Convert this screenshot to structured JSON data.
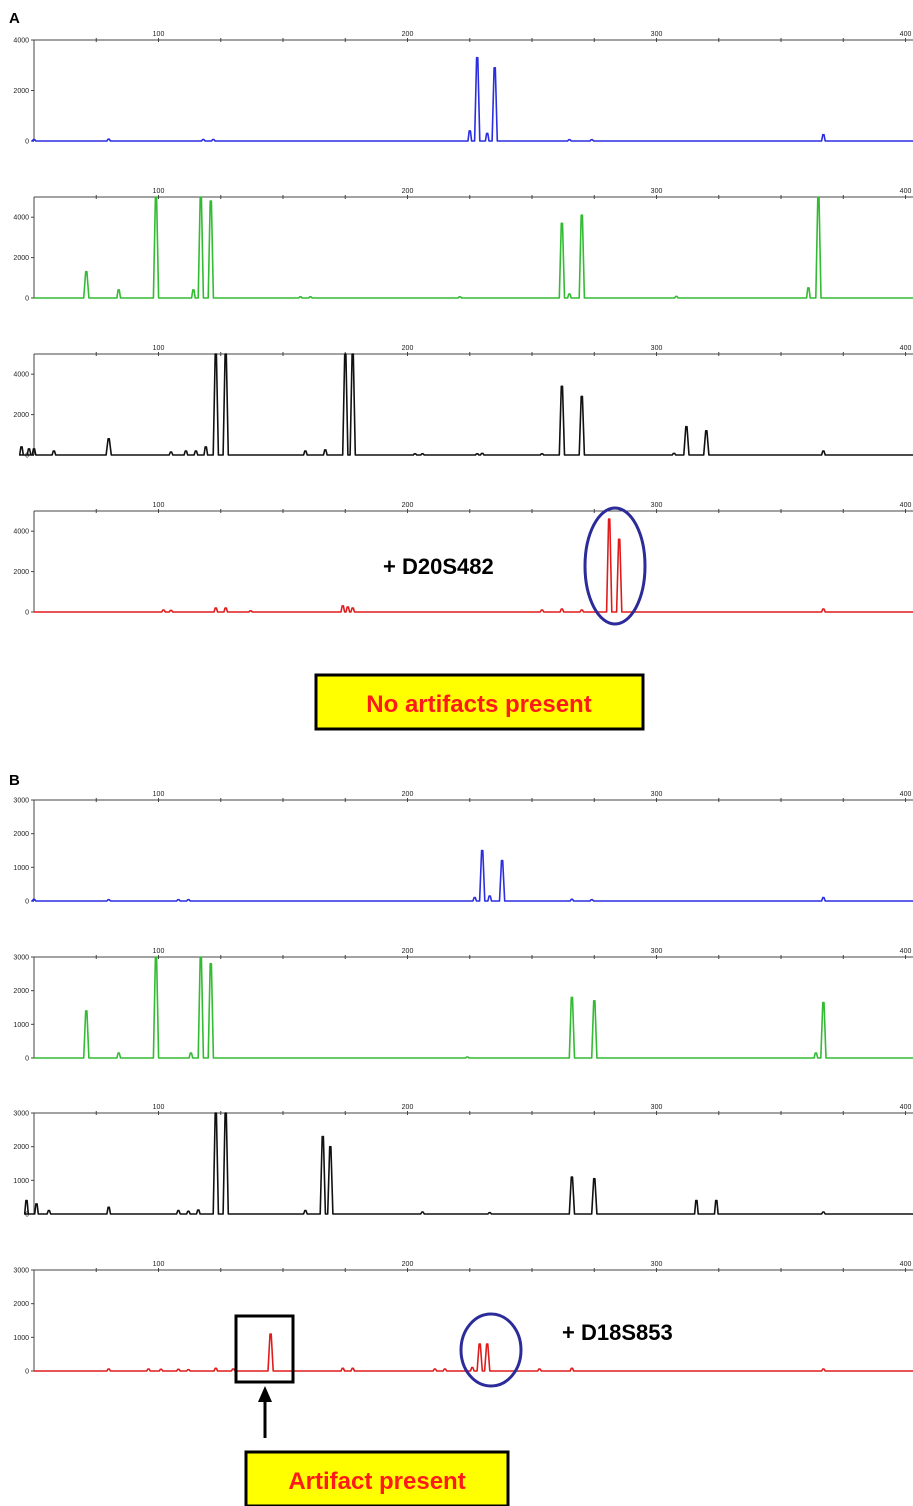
{
  "panels": [
    {
      "label": "A",
      "tracks": [
        {
          "color": "#2a2ee0",
          "ymax": 4000,
          "yticks": [
            0,
            2000,
            4000
          ],
          "peaks": [
            [
              50,
              60
            ],
            [
              80,
              70
            ],
            [
              118,
              60
            ],
            [
              122,
              60
            ],
            [
              225,
              400
            ],
            [
              228,
              3300
            ],
            [
              232,
              300
            ],
            [
              235,
              2900
            ],
            [
              265,
              50
            ],
            [
              274,
              50
            ],
            [
              367,
              250
            ]
          ]
        },
        {
          "color": "#33bb33",
          "ymax": 5000,
          "yticks": [
            0,
            2000,
            4000
          ],
          "peaks": [
            [
              71,
              1300
            ],
            [
              84,
              400
            ],
            [
              99,
              5000
            ],
            [
              114,
              400
            ],
            [
              117,
              5000
            ],
            [
              121,
              4800
            ],
            [
              157,
              60
            ],
            [
              161,
              60
            ],
            [
              221,
              60
            ],
            [
              262,
              3700
            ],
            [
              265,
              200
            ],
            [
              270,
              4100
            ],
            [
              308,
              80
            ],
            [
              361,
              500
            ],
            [
              365,
              5000
            ]
          ]
        },
        {
          "color": "#111111",
          "ymax": 5000,
          "yticks": [
            0,
            2000,
            4000
          ],
          "peaks": [
            [
              45,
              400
            ],
            [
              48,
              300
            ],
            [
              50,
              300
            ],
            [
              58,
              200
            ],
            [
              80,
              800
            ],
            [
              105,
              150
            ],
            [
              111,
              200
            ],
            [
              115,
              200
            ],
            [
              119,
              400
            ],
            [
              123,
              5000
            ],
            [
              127,
              5000
            ],
            [
              159,
              200
            ],
            [
              167,
              250
            ],
            [
              175,
              5000
            ],
            [
              178,
              5000
            ],
            [
              203,
              60
            ],
            [
              206,
              60
            ],
            [
              228,
              60
            ],
            [
              230,
              80
            ],
            [
              254,
              60
            ],
            [
              262,
              3400
            ],
            [
              270,
              2900
            ],
            [
              307,
              80
            ],
            [
              312,
              1400
            ],
            [
              320,
              1200
            ],
            [
              367,
              200
            ]
          ]
        },
        {
          "color": "#e01b1b",
          "ymax": 5000,
          "yticks": [
            0,
            2000,
            4000
          ],
          "peaks": [
            [
              102,
              100
            ],
            [
              105,
              80
            ],
            [
              123,
              200
            ],
            [
              127,
              200
            ],
            [
              137,
              60
            ],
            [
              174,
              300
            ],
            [
              176,
              250
            ],
            [
              178,
              200
            ],
            [
              254,
              100
            ],
            [
              262,
              150
            ],
            [
              270,
              100
            ],
            [
              281,
              4600
            ],
            [
              285,
              3600
            ],
            [
              367,
              150
            ]
          ]
        }
      ],
      "marker": "+ D20S482",
      "note": "No artifacts present",
      "chart_data": {
        "type": "line",
        "title": "",
        "x_ticks": [
          100,
          200,
          300,
          400
        ],
        "series": [
          {
            "name": "",
            "peaks_x": [
              228,
              235
            ],
            "peaks_y": [
              3300,
              2900
            ]
          },
          {
            "name": "",
            "peaks_x": [
              71,
              99,
              117,
              121,
              262,
              270,
              365
            ],
            "peaks_y": [
              1300,
              5000,
              5000,
              4800,
              3700,
              4100,
              5000
            ]
          },
          {
            "name": "",
            "peaks_x": [
              80,
              123,
              127,
              175,
              178,
              262,
              270,
              312,
              320
            ],
            "peaks_y": [
              800,
              5000,
              5000,
              5000,
              5000,
              3400,
              2900,
              1400,
              1200
            ]
          },
          {
            "name": "",
            "peaks_x": [
              281,
              285
            ],
            "peaks_y": [
              4600,
              3600
            ]
          }
        ],
        "xlim": [
          50,
          400
        ]
      }
    },
    {
      "label": "B",
      "tracks": [
        {
          "color": "#2a2ee0",
          "ymax": 3000,
          "yticks": [
            0,
            1000,
            2000,
            3000
          ],
          "peaks": [
            [
              50,
              50
            ],
            [
              80,
              40
            ],
            [
              108,
              40
            ],
            [
              112,
              40
            ],
            [
              227,
              100
            ],
            [
              230,
              1500
            ],
            [
              233,
              150
            ],
            [
              238,
              1200
            ],
            [
              266,
              50
            ],
            [
              274,
              40
            ],
            [
              367,
              100
            ]
          ]
        },
        {
          "color": "#33bb33",
          "ymax": 3000,
          "yticks": [
            0,
            1000,
            2000,
            3000
          ],
          "peaks": [
            [
              71,
              1400
            ],
            [
              84,
              150
            ],
            [
              99,
              3000
            ],
            [
              113,
              150
            ],
            [
              117,
              3000
            ],
            [
              121,
              2800
            ],
            [
              224,
              30
            ],
            [
              266,
              1800
            ],
            [
              275,
              1700
            ],
            [
              364,
              150
            ],
            [
              367,
              1650
            ]
          ]
        },
        {
          "color": "#111111",
          "ymax": 3000,
          "yticks": [
            0,
            1000,
            2000,
            3000
          ],
          "peaks": [
            [
              47,
              400
            ],
            [
              51,
              300
            ],
            [
              56,
              100
            ],
            [
              80,
              200
            ],
            [
              108,
              100
            ],
            [
              112,
              80
            ],
            [
              116,
              120
            ],
            [
              123,
              3000
            ],
            [
              127,
              3000
            ],
            [
              159,
              100
            ],
            [
              166,
              2300
            ],
            [
              169,
              2000
            ],
            [
              206,
              60
            ],
            [
              233,
              40
            ],
            [
              266,
              1100
            ],
            [
              275,
              1050
            ],
            [
              316,
              400
            ],
            [
              324,
              400
            ],
            [
              367,
              60
            ]
          ]
        },
        {
          "color": "#e01b1b",
          "ymax": 3000,
          "yticks": [
            0,
            1000,
            2000,
            3000
          ],
          "peaks": [
            [
              80,
              60
            ],
            [
              96,
              60
            ],
            [
              101,
              50
            ],
            [
              108,
              50
            ],
            [
              112,
              40
            ],
            [
              123,
              80
            ],
            [
              130,
              60
            ],
            [
              145,
              1100
            ],
            [
              174,
              80
            ],
            [
              178,
              80
            ],
            [
              211,
              60
            ],
            [
              215,
              60
            ],
            [
              226,
              100
            ],
            [
              229,
              800
            ],
            [
              232,
              800
            ],
            [
              253,
              60
            ],
            [
              266,
              80
            ],
            [
              367,
              60
            ]
          ]
        }
      ],
      "marker": "+ D18S853",
      "note": "Artifact present",
      "chart_data": {
        "type": "line",
        "title": "",
        "x_ticks": [
          100,
          200,
          300,
          400
        ],
        "series": [
          {
            "name": "",
            "peaks_x": [
              230,
              238
            ],
            "peaks_y": [
              1500,
              1200
            ]
          },
          {
            "name": "",
            "peaks_x": [
              71,
              99,
              117,
              121,
              266,
              275,
              367
            ],
            "peaks_y": [
              1400,
              3000,
              3000,
              2800,
              1800,
              1700,
              1650
            ]
          },
          {
            "name": "",
            "peaks_x": [
              123,
              127,
              166,
              169,
              266,
              275,
              316,
              324
            ],
            "peaks_y": [
              3000,
              3000,
              2300,
              2000,
              1100,
              1050,
              400,
              400
            ]
          },
          {
            "name": "",
            "peaks_x": [
              145,
              229,
              232
            ],
            "peaks_y": [
              1100,
              800,
              800
            ]
          }
        ],
        "xlim": [
          50,
          400
        ]
      }
    }
  ]
}
